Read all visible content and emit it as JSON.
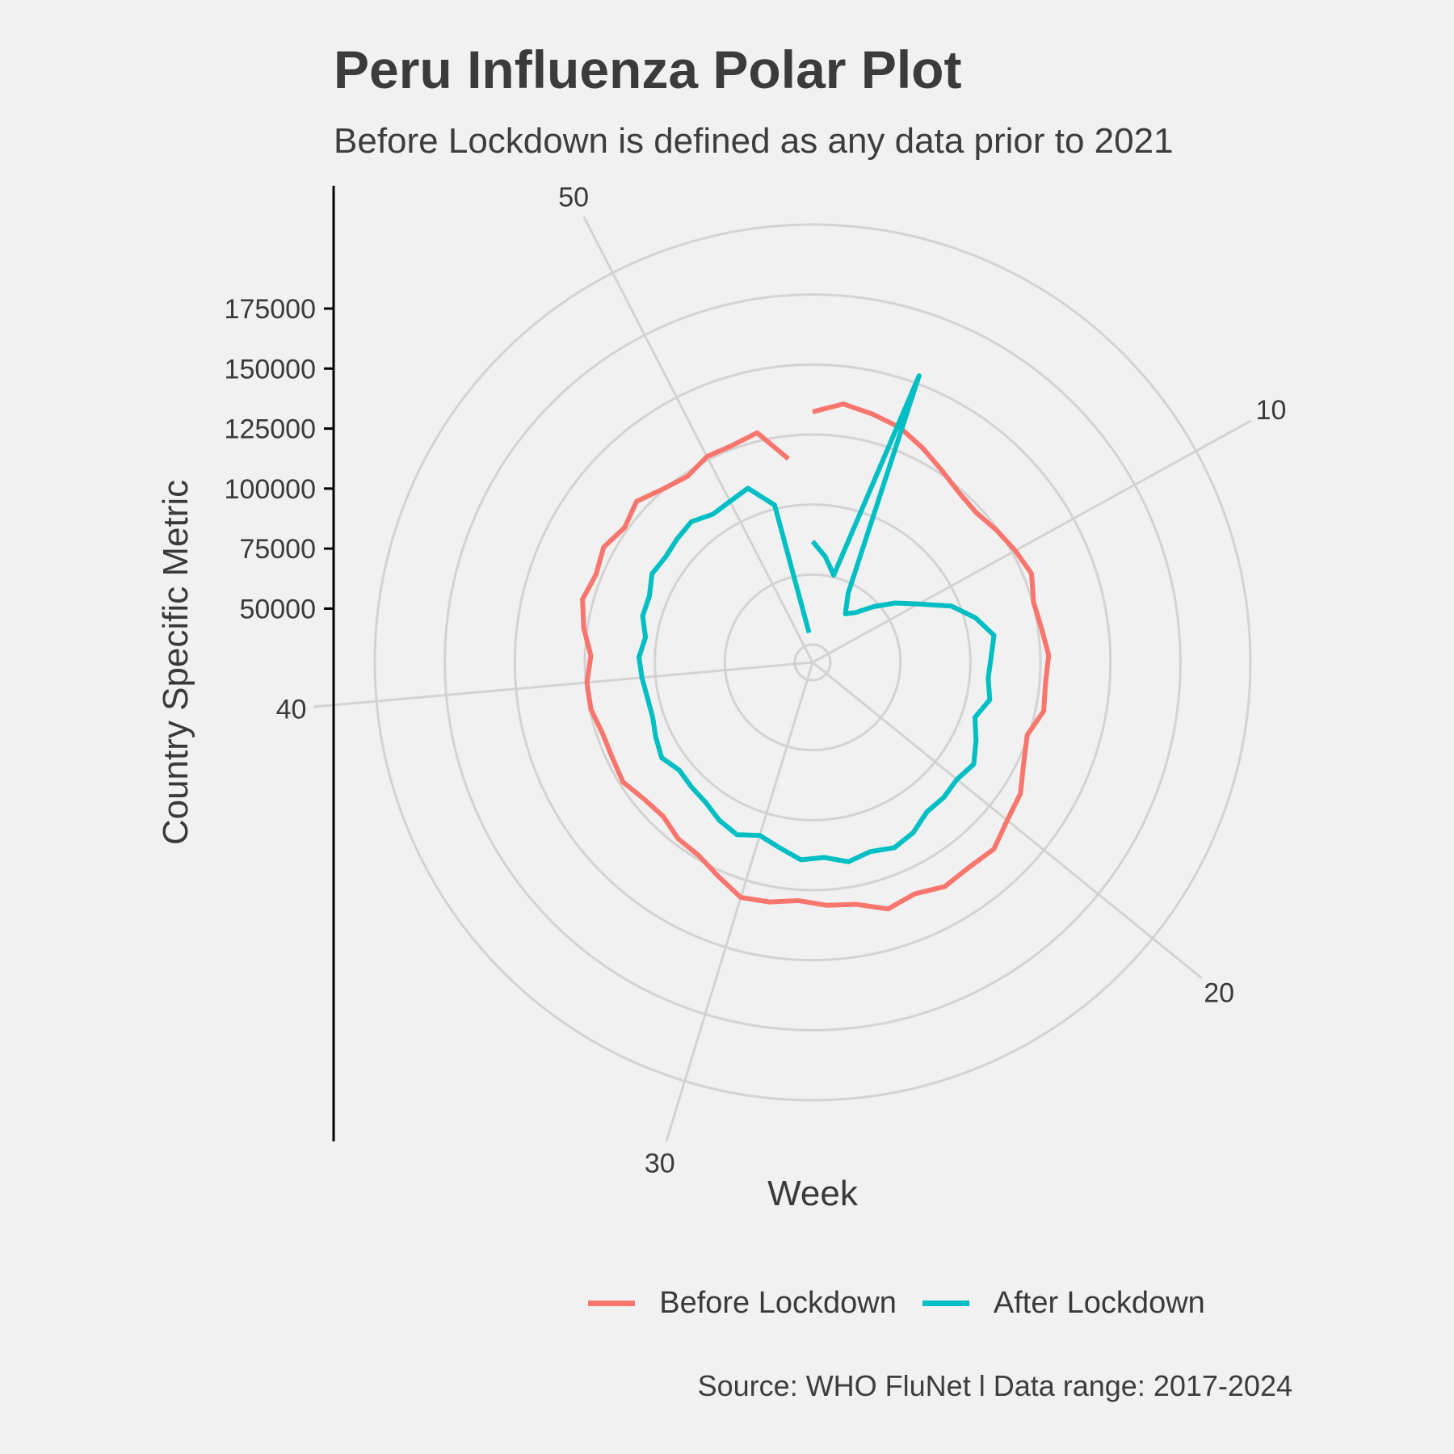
{
  "header": {
    "title": "Peru Influenza Polar Plot",
    "subtitle": "Before Lockdown is defined as any data prior to 2021"
  },
  "caption": "Source: WHO FluNet l Data range: 2017-2024",
  "legend": {
    "position": "bottom",
    "items": [
      {
        "label": "Before Lockdown",
        "color": "#F8766D"
      },
      {
        "label": "After Lockdown",
        "color": "#00BFC4"
      }
    ]
  },
  "chart_data": {
    "type": "line",
    "coordinate_system": "polar",
    "title": "Peru Influenza Polar Plot",
    "subtitle": "Before Lockdown is defined as any data prior to 2021",
    "xlabel": "Week",
    "ylabel": "Country Specific Metric",
    "x_ticks": [
      "10",
      "20",
      "30",
      "40",
      "50"
    ],
    "y_ticks": [
      "50000",
      "75000",
      "100000",
      "125000",
      "150000",
      "175000"
    ],
    "xlim": [
      1,
      53
    ],
    "ylim": [
      35000,
      210000
    ],
    "grid": true,
    "series": [
      {
        "name": "Before Lockdown",
        "color": "#F8766D",
        "x": [
          1,
          2,
          3,
          4,
          5,
          6,
          7,
          8,
          9,
          10,
          11,
          12,
          13,
          14,
          15,
          16,
          17,
          18,
          19,
          20,
          21,
          22,
          23,
          24,
          25,
          26,
          27,
          28,
          29,
          30,
          31,
          32,
          33,
          34,
          35,
          36,
          37,
          38,
          39,
          40,
          41,
          42,
          43,
          44,
          45,
          46,
          47,
          48,
          49,
          50,
          51,
          52,
          53
        ],
        "values": [
          132000,
          136000,
          134000,
          132000,
          128000,
          124000,
          121000,
          120000,
          122000,
          124000,
          126000,
          123000,
          124000,
          126000,
          125000,
          126000,
          122000,
          125000,
          130000,
          132000,
          136000,
          135000,
          136000,
          133000,
          135000,
          130000,
          129000,
          127000,
          129000,
          130000,
          125000,
          121000,
          120000,
          117000,
          118000,
          121000,
          120000,
          120000,
          122000,
          122000,
          120000,
          124000,
          127000,
          125000,
          127000,
          124000,
          127000,
          123000,
          121000,
          124000,
          124000,
          126000,
          113000
        ]
      },
      {
        "name": "After Lockdown",
        "color": "#00BFC4",
        "x": [
          1,
          2,
          3,
          4,
          5,
          6,
          7,
          8,
          9,
          10,
          11,
          12,
          13,
          14,
          15,
          16,
          17,
          18,
          19,
          20,
          21,
          22,
          23,
          24,
          25,
          26,
          27,
          28,
          29,
          30,
          31,
          32,
          33,
          34,
          35,
          36,
          37,
          38,
          39,
          40,
          41,
          42,
          43,
          44,
          45,
          46,
          47,
          48,
          49,
          50,
          51,
          52,
          53
        ],
        "values": [
          78000,
          72000,
          65000,
          155000,
          60000,
          52000,
          55000,
          62000,
          70000,
          78000,
          90000,
          98000,
          104000,
          102000,
          101000,
          103000,
          99000,
          103000,
          107000,
          105000,
          106000,
          106000,
          110000,
          112000,
          110000,
          112000,
          109000,
          110000,
          106000,
          103000,
          106000,
          104000,
          101000,
          100000,
          99000,
          102000,
          100000,
          98000,
          98000,
          99000,
          100000,
          98000,
          101000,
          101000,
          104000,
          103000,
          104000,
          105000,
          102000,
          103000,
          105000,
          95000,
          40000
        ]
      }
    ]
  }
}
